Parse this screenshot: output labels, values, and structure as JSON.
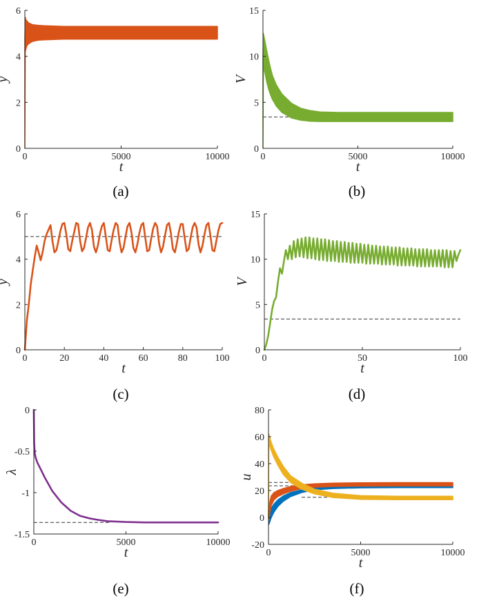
{
  "colors": {
    "orange": "#d95319",
    "green": "#77ac30",
    "purple": "#7e2f8e",
    "blue": "#0072bd",
    "yellow": "#edb120",
    "axis": "#262626",
    "dashed": "#333333"
  },
  "chart_data": [
    {
      "id": "a",
      "caption": "(a)",
      "type": "line",
      "xlabel": "t",
      "ylabel": "y",
      "xlim": [
        0,
        10000
      ],
      "ylim": [
        0,
        6
      ],
      "xticks": [
        0,
        5000,
        10000
      ],
      "xticklabels": [
        "0",
        "5000",
        "10000"
      ],
      "yticks": [
        0,
        2,
        4,
        6
      ],
      "yticklabels": [
        "0",
        "2",
        "4",
        "6"
      ],
      "series": [
        {
          "color": "#d95319",
          "style": "band",
          "x": [
            0,
            1,
            20,
            50,
            100,
            200,
            400,
            700,
            1000,
            2000,
            4000,
            6000,
            8000,
            10000
          ],
          "lower": [
            0,
            0,
            4.2,
            4.3,
            4.45,
            4.55,
            4.65,
            4.7,
            4.72,
            4.75,
            4.75,
            4.75,
            4.75,
            4.75
          ],
          "upper": [
            0,
            4.8,
            5.7,
            5.6,
            5.55,
            5.45,
            5.38,
            5.35,
            5.33,
            5.3,
            5.3,
            5.3,
            5.3,
            5.3
          ]
        }
      ],
      "refs": []
    },
    {
      "id": "b",
      "caption": "(b)",
      "type": "line",
      "xlabel": "t",
      "ylabel": "V",
      "xlim": [
        0,
        10000
      ],
      "ylim": [
        0,
        15
      ],
      "xticks": [
        0,
        5000,
        10000
      ],
      "xticklabels": [
        "0",
        "5000",
        "10000"
      ],
      "yticks": [
        0,
        5,
        10,
        15
      ],
      "yticklabels": [
        "0",
        "5",
        "10",
        "15"
      ],
      "series": [
        {
          "color": "#77ac30",
          "style": "band",
          "x": [
            0,
            1,
            20,
            50,
            100,
            200,
            300,
            400,
            500,
            700,
            1000,
            1500,
            2000,
            2500,
            3000,
            4000,
            5000,
            7000,
            10000
          ],
          "lower": [
            0,
            0,
            9.0,
            8.7,
            8.2,
            7.2,
            6.4,
            5.8,
            5.3,
            4.6,
            3.9,
            3.3,
            3.05,
            2.95,
            2.92,
            2.92,
            2.92,
            2.92,
            2.92
          ],
          "upper": [
            0,
            10.0,
            12.5,
            12.2,
            11.7,
            10.6,
            9.6,
            8.7,
            7.9,
            6.9,
            5.9,
            4.9,
            4.35,
            4.1,
            3.95,
            3.9,
            3.9,
            3.9,
            3.9
          ]
        }
      ],
      "refs": [
        {
          "y": 3.4,
          "x0": 0,
          "x1": 1600
        }
      ]
    },
    {
      "id": "c",
      "caption": "(c)",
      "type": "line",
      "xlabel": "t",
      "ylabel": "y",
      "xlim": [
        0,
        100
      ],
      "ylim": [
        0,
        6
      ],
      "xticks": [
        0,
        20,
        40,
        60,
        80,
        100
      ],
      "xticklabels": [
        "0",
        "20",
        "40",
        "60",
        "80",
        "100"
      ],
      "yticks": [
        0,
        2,
        4,
        6
      ],
      "yticklabels": [
        "0",
        "2",
        "4",
        "6"
      ],
      "series": [
        {
          "color": "#d95319",
          "style": "line",
          "x": [
            0,
            1,
            2,
            3,
            4,
            5,
            6,
            7,
            8,
            9,
            10,
            11,
            12,
            13,
            14,
            15,
            16,
            17,
            18,
            19,
            20,
            21,
            22,
            23,
            24,
            25,
            26,
            27,
            28,
            29,
            30,
            31,
            32,
            33,
            34,
            35,
            36,
            37,
            38,
            39,
            40,
            41,
            42,
            43,
            44,
            45,
            46,
            47,
            48,
            49,
            50,
            51,
            52,
            53,
            54,
            55,
            56,
            57,
            58,
            59,
            60,
            61,
            62,
            63,
            64,
            65,
            66,
            67,
            68,
            69,
            70,
            71,
            72,
            73,
            74,
            75,
            76,
            77,
            78,
            79,
            80,
            81,
            82,
            83,
            84,
            85,
            86,
            87,
            88,
            89,
            90,
            91,
            92,
            93,
            94,
            95,
            96,
            97,
            98,
            99,
            100
          ],
          "values": [
            0,
            1.3,
            2.0,
            2.9,
            3.5,
            4.1,
            4.6,
            4.3,
            3.95,
            4.3,
            4.8,
            5.1,
            5.3,
            5.5,
            4.8,
            4.3,
            4.4,
            4.8,
            5.25,
            5.55,
            5.6,
            5.1,
            4.45,
            4.35,
            4.8,
            5.2,
            5.6,
            5.55,
            4.8,
            4.35,
            4.5,
            4.95,
            5.4,
            5.6,
            5.3,
            4.55,
            4.3,
            4.6,
            5.1,
            5.45,
            5.6,
            5.0,
            4.4,
            4.35,
            4.85,
            5.3,
            5.6,
            5.5,
            4.75,
            4.3,
            4.5,
            5.0,
            5.45,
            5.6,
            5.2,
            4.5,
            4.3,
            4.65,
            5.15,
            5.5,
            5.6,
            4.95,
            4.35,
            4.4,
            4.9,
            5.35,
            5.6,
            5.45,
            4.7,
            4.3,
            4.55,
            5.05,
            5.5,
            5.6,
            5.15,
            4.45,
            4.3,
            4.7,
            5.2,
            5.55,
            5.55,
            4.9,
            4.35,
            4.45,
            4.95,
            5.4,
            5.6,
            5.4,
            4.65,
            4.3,
            4.6,
            5.1,
            5.5,
            5.6,
            5.05,
            4.4,
            4.35,
            4.8,
            5.25,
            5.55,
            5.6
          ]
        }
      ],
      "refs": [
        {
          "y": 5.0,
          "x0": 0,
          "x1": 100
        }
      ]
    },
    {
      "id": "d",
      "caption": "(d)",
      "type": "line",
      "xlabel": "t",
      "ylabel": "V",
      "xlim": [
        0,
        100
      ],
      "ylim": [
        0,
        15
      ],
      "xticks": [
        0,
        50,
        100
      ],
      "xticklabels": [
        "0",
        "50",
        "100"
      ],
      "yticks": [
        0,
        5,
        10,
        15
      ],
      "yticklabels": [
        "0",
        "5",
        "10",
        "15"
      ],
      "series": [
        {
          "color": "#77ac30",
          "style": "line",
          "x": [
            0,
            1,
            2,
            3,
            4,
            5,
            6,
            7,
            8,
            9,
            10,
            11,
            12,
            13,
            14,
            15,
            16,
            17,
            18,
            19,
            20,
            21,
            22,
            23,
            24,
            25,
            26,
            27,
            28,
            29,
            30,
            31,
            32,
            33,
            34,
            35,
            36,
            37,
            38,
            39,
            40,
            41,
            42,
            43,
            44,
            45,
            46,
            47,
            48,
            49,
            50,
            51,
            52,
            53,
            54,
            55,
            56,
            57,
            58,
            59,
            60,
            61,
            62,
            63,
            64,
            65,
            66,
            67,
            68,
            69,
            70,
            71,
            72,
            73,
            74,
            75,
            76,
            77,
            78,
            79,
            80,
            81,
            82,
            83,
            84,
            85,
            86,
            87,
            88,
            89,
            90,
            91,
            92,
            93,
            94,
            95,
            96,
            97,
            98,
            99,
            100
          ],
          "values": [
            0,
            0.6,
            1.6,
            3.0,
            4.5,
            5.4,
            5.8,
            7.6,
            9.0,
            8.4,
            9.8,
            11.0,
            10.0,
            11.5,
            10.0,
            12.0,
            10.2,
            12.2,
            10.3,
            12.3,
            10.2,
            12.4,
            10.1,
            12.4,
            10.1,
            12.3,
            10.0,
            12.3,
            9.9,
            12.2,
            9.9,
            12.2,
            9.8,
            12.1,
            9.8,
            12.0,
            9.8,
            12.0,
            9.7,
            11.9,
            9.7,
            11.9,
            9.7,
            11.8,
            9.6,
            11.8,
            9.6,
            11.7,
            9.6,
            11.7,
            9.6,
            11.6,
            9.5,
            11.6,
            9.5,
            11.5,
            9.5,
            11.5,
            9.5,
            11.4,
            9.4,
            11.4,
            9.4,
            11.4,
            9.4,
            11.3,
            9.4,
            11.3,
            9.3,
            11.3,
            9.3,
            11.2,
            9.3,
            11.2,
            9.3,
            11.2,
            9.3,
            11.1,
            9.2,
            11.1,
            9.2,
            11.1,
            9.2,
            11.1,
            9.2,
            11.0,
            9.2,
            11.0,
            9.2,
            11.0,
            9.2,
            11.0,
            9.1,
            11.0,
            9.1,
            10.9,
            9.1,
            10.9,
            9.8,
            10.5,
            11.0
          ]
        }
      ],
      "refs": [
        {
          "y": 3.4,
          "x0": 0,
          "x1": 100
        }
      ]
    },
    {
      "id": "e",
      "caption": "(e)",
      "type": "line",
      "xlabel": "t",
      "ylabel": "λ",
      "xlim": [
        0,
        10000
      ],
      "ylim": [
        -1.5,
        0
      ],
      "xticks": [
        0,
        5000,
        10000
      ],
      "xticklabels": [
        "0",
        "5000",
        "10000"
      ],
      "yticks": [
        0,
        -0.5,
        -1,
        -1.5
      ],
      "yticklabels": [
        "0",
        "-0.5",
        "-1",
        "-1.5"
      ],
      "series": [
        {
          "color": "#7e2f8e",
          "style": "line",
          "x": [
            0,
            20,
            50,
            100,
            200,
            400,
            600,
            800,
            1000,
            1500,
            2000,
            2500,
            3000,
            3500,
            4000,
            5000,
            6000,
            7000,
            8000,
            9000,
            10000
          ],
          "values": [
            0,
            -0.4,
            -0.52,
            -0.58,
            -0.64,
            -0.73,
            -0.82,
            -0.9,
            -0.98,
            -1.12,
            -1.22,
            -1.28,
            -1.31,
            -1.33,
            -1.345,
            -1.355,
            -1.36,
            -1.36,
            -1.36,
            -1.36,
            -1.36
          ]
        }
      ],
      "refs": [
        {
          "y": -1.36,
          "x0": 0,
          "x1": 4200
        }
      ]
    },
    {
      "id": "f",
      "caption": "(f)",
      "type": "line",
      "xlabel": "t",
      "ylabel": "u",
      "xlim": [
        0,
        10000
      ],
      "ylim": [
        -20,
        80
      ],
      "xticks": [
        0,
        5000,
        10000
      ],
      "xticklabels": [
        "0",
        "5000",
        "10000"
      ],
      "yticks": [
        -20,
        0,
        20,
        40,
        60,
        80
      ],
      "yticklabels": [
        "-20",
        "0",
        "20",
        "40",
        "60",
        "80"
      ],
      "series": [
        {
          "color": "#0072bd",
          "style": "band",
          "x": [
            0,
            1,
            30,
            80,
            150,
            300,
            500,
            800,
            1200,
            1800,
            2500,
            3500,
            5000,
            7000,
            10000
          ],
          "lower": [
            0,
            0,
            -5,
            -3,
            0,
            4,
            8,
            12,
            15.5,
            18.5,
            20.5,
            21.5,
            22,
            22.2,
            22.2
          ],
          "upper": [
            0,
            5,
            2,
            4,
            7,
            10,
            13,
            16,
            18.5,
            20.5,
            22,
            23,
            23.5,
            23.6,
            23.6
          ]
        },
        {
          "color": "#d95319",
          "style": "band",
          "x": [
            0,
            1,
            30,
            80,
            150,
            300,
            500,
            800,
            1200,
            1800,
            2500,
            3500,
            5000,
            7000,
            10000
          ],
          "lower": [
            0,
            0,
            -2,
            4,
            9,
            13,
            15.5,
            17.5,
            19.5,
            21.5,
            22.5,
            23,
            23.3,
            23.4,
            23.4
          ],
          "upper": [
            0,
            6,
            6,
            12,
            16,
            18.5,
            20,
            21.5,
            23,
            24.3,
            25,
            25.5,
            25.8,
            25.9,
            25.9
          ]
        },
        {
          "color": "#edb120",
          "style": "band",
          "x": [
            0,
            1,
            20,
            60,
            120,
            250,
            500,
            800,
            1200,
            1800,
            2500,
            3500,
            5000,
            7000,
            10000
          ],
          "lower": [
            0,
            0,
            55,
            54,
            51,
            46,
            39,
            32,
            26,
            21,
            17.5,
            14.8,
            13.5,
            13.2,
            13.2
          ],
          "upper": [
            0,
            8,
            62,
            60,
            57,
            52,
            45,
            38,
            31,
            25.5,
            21,
            18,
            16.2,
            15.8,
            15.8
          ]
        }
      ],
      "refs": [
        {
          "y": 26,
          "x0": 0,
          "x1": 1800
        },
        {
          "y": 23.5,
          "x0": 0,
          "x1": 1800
        },
        {
          "y": 15,
          "x0": 1800,
          "x1": 3200
        }
      ]
    }
  ]
}
